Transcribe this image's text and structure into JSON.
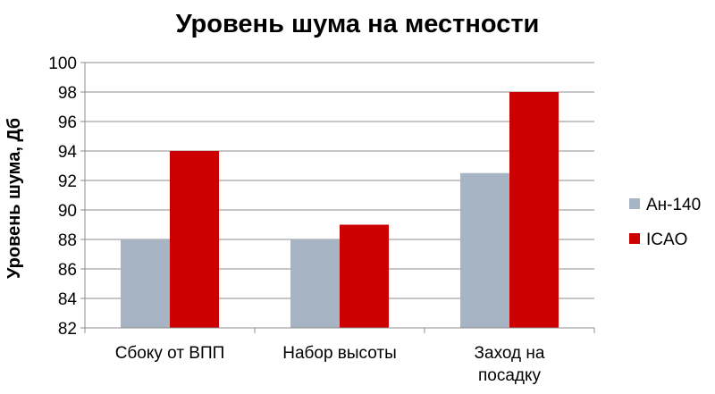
{
  "chart_data": {
    "type": "bar",
    "title": "Уровень шума на местности",
    "ylabel": "Уровень шума, Дб",
    "xlabel": "",
    "categories": [
      [
        "Сбоку от ВПП"
      ],
      [
        "Набор высоты"
      ],
      [
        "Заход на",
        "посадку"
      ]
    ],
    "series": [
      {
        "name": "Ан-140",
        "color": "#a6b4c4",
        "values": [
          88,
          88,
          92.5
        ]
      },
      {
        "name": "ICAO",
        "color": "#cc0000",
        "values": [
          94,
          89,
          98
        ]
      }
    ],
    "ylim": [
      82,
      100
    ],
    "yticks": [
      82,
      84,
      86,
      88,
      90,
      92,
      94,
      96,
      98,
      100
    ],
    "grid": true,
    "legend_position": "right"
  }
}
